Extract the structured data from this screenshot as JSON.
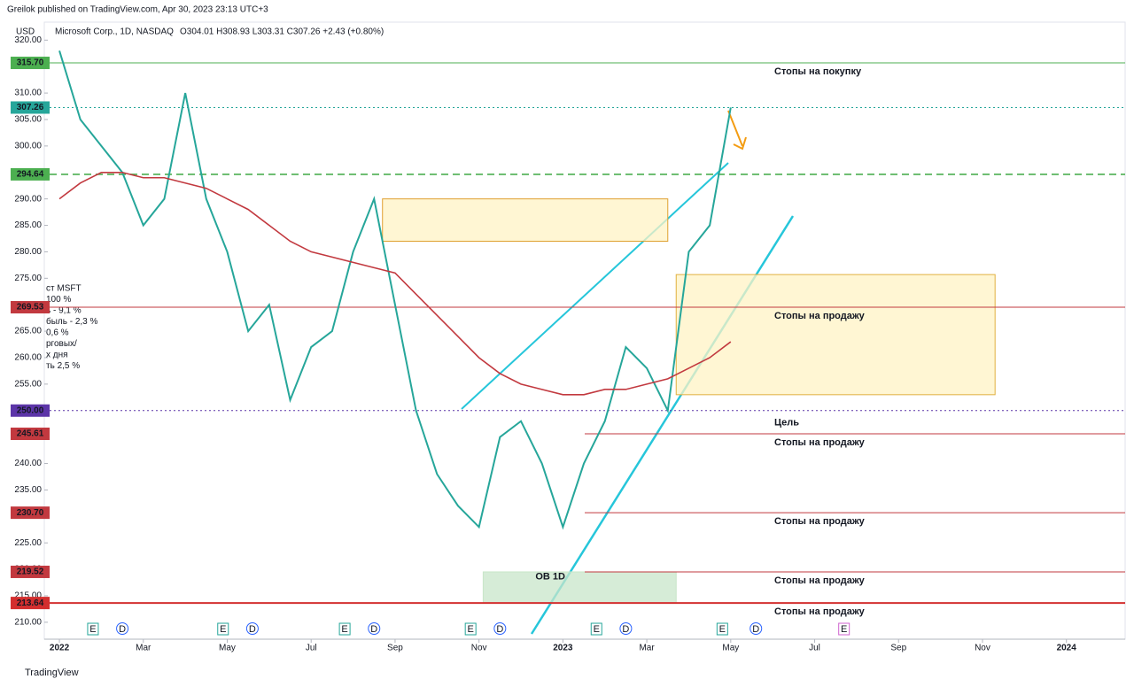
{
  "header": {
    "published": "Greilok published on TradingView.com, Apr 30, 2023 23:13 UTC+3",
    "currency": "USD",
    "symbol": "Microsoft Corp., 1D, NASDAQ",
    "ohlc": "O304.01 H308.93 L303.31 C307.26 +2.43 (+0.80%)",
    "notes": [
      "ст MSFT",
      "100 %",
      "ь - 9,1 %",
      "быль - 2,3 %",
      "0,6 %",
      "рговых/",
      "х дня",
      "ть 2,5 %"
    ]
  },
  "footer": {
    "brand": "TradingView"
  },
  "chart_data": {
    "type": "line",
    "xlim": [
      -0.36,
      25.4
    ],
    "ylim": [
      206.8,
      323.4
    ],
    "xticks": [
      {
        "value": 0,
        "label": "2022"
      },
      {
        "value": 2,
        "label": "Mar"
      },
      {
        "value": 4,
        "label": "May"
      },
      {
        "value": 6,
        "label": "Jul"
      },
      {
        "value": 8,
        "label": "Sep"
      },
      {
        "value": 10,
        "label": "Nov"
      },
      {
        "value": 12,
        "label": "2023"
      },
      {
        "value": 14,
        "label": "Mar"
      },
      {
        "value": 16,
        "label": "May"
      },
      {
        "value": 18,
        "label": "Jul"
      },
      {
        "value": 20,
        "label": "Sep"
      },
      {
        "value": 22,
        "label": "Nov"
      },
      {
        "value": 24,
        "label": "2024"
      }
    ],
    "yticks": [
      {
        "value": 210,
        "label": "210.00"
      },
      {
        "value": 215,
        "label": "215.00"
      },
      {
        "value": 220,
        "label": "220.00"
      },
      {
        "value": 225,
        "label": "225.00"
      },
      {
        "value": 230,
        "label": "230.00"
      },
      {
        "value": 235,
        "label": "235.00"
      },
      {
        "value": 240,
        "label": "240.00"
      },
      {
        "value": 255,
        "label": "255.00"
      },
      {
        "value": 260,
        "label": "260.00"
      },
      {
        "value": 265,
        "label": "265.00"
      },
      {
        "value": 275,
        "label": "275.00"
      },
      {
        "value": 280,
        "label": "280.00"
      },
      {
        "value": 285,
        "label": "285.00"
      },
      {
        "value": 290,
        "label": "290.00"
      },
      {
        "value": 300,
        "label": "300.00"
      },
      {
        "value": 305,
        "label": "305.00"
      },
      {
        "value": 310,
        "label": "310.00"
      },
      {
        "value": 320,
        "label": "320.00"
      }
    ],
    "x": [
      0,
      0.5,
      1,
      1.5,
      2,
      2.5,
      3,
      3.5,
      4,
      4.5,
      5,
      5.5,
      6,
      6.5,
      7,
      7.5,
      8,
      8.5,
      9,
      9.5,
      10,
      10.5,
      11,
      11.5,
      12,
      12.5,
      13,
      13.5,
      14,
      14.5,
      15,
      15.5,
      16
    ],
    "series": [
      {
        "name": "Microsoft Corp.",
        "color": "#26a69a",
        "values": [
          318,
          305,
          300,
          295,
          285,
          290,
          310,
          290,
          280,
          265,
          270,
          252,
          262,
          265,
          280,
          290,
          270,
          250,
          238,
          232,
          228,
          245,
          248,
          240,
          228,
          240,
          248,
          262,
          258,
          250,
          280,
          285,
          307.26
        ]
      },
      {
        "color": "#c2393f",
        "values": [
          290,
          293,
          295,
          295,
          294,
          294,
          293,
          292,
          290,
          288,
          285,
          282,
          280,
          279,
          278,
          277,
          276,
          272,
          268,
          264,
          260,
          257,
          255,
          254,
          253,
          253,
          254,
          254,
          255,
          256,
          258,
          260,
          263
        ]
      }
    ],
    "levels": [
      {
        "value": 315.7,
        "label": "315.70",
        "color": "#4caf50",
        "style": "solid",
        "text": "Стопы на покупку"
      },
      {
        "value": 307.26,
        "label": "307.26",
        "color": "#26a69a",
        "style": "dotted"
      },
      {
        "value": 294.64,
        "label": "294.64",
        "color": "#4caf50",
        "style": "dashed"
      },
      {
        "value": 269.53,
        "label": "269.53",
        "color": "#c2393f",
        "style": "solid",
        "text": "Стопы на продажу"
      },
      {
        "value": 250,
        "label": "250.00",
        "color": "#5c35a8",
        "style": "dotted",
        "text": "Цель"
      },
      {
        "value": 245.61,
        "label": "245.61",
        "color": "#c2393f",
        "style": "solid",
        "text": "Стопы на продажу"
      },
      {
        "value": 230.7,
        "label": "230.70",
        "color": "#c2393f",
        "style": "solid",
        "text": "Стопы на продажу"
      },
      {
        "value": 219.52,
        "label": "219.52",
        "color": "#c2393f",
        "style": "solid",
        "text": "Стопы на продажу"
      },
      {
        "value": 213.64,
        "label": "213.64",
        "color": "#d32f2f",
        "style": "thick",
        "text": "Стопы на продажу"
      }
    ],
    "zones": [
      {
        "x": [
          7.7,
          14.5
        ],
        "y": [
          282,
          290
        ],
        "color": "#fff3c4",
        "edge": "#e0a030"
      },
      {
        "x": [
          14.7,
          22.3
        ],
        "y": [
          253,
          275.7
        ],
        "color": "#fff3c4",
        "edge": "#e0b040"
      },
      {
        "x": [
          10.1,
          14.7
        ],
        "y": [
          213.64,
          219.52
        ],
        "color": "#c8e6c9",
        "edge": "#c8e6c9",
        "text": "OB 1D"
      }
    ],
    "events": [
      {
        "x": 0.8,
        "label": "E"
      },
      {
        "x": 1.5,
        "label": "D"
      },
      {
        "x": 3.9,
        "label": "E"
      },
      {
        "x": 4.6,
        "label": "D"
      },
      {
        "x": 6.8,
        "label": "E"
      },
      {
        "x": 7.5,
        "label": "D"
      },
      {
        "x": 9.8,
        "label": "E"
      },
      {
        "x": 10.5,
        "label": "D"
      },
      {
        "x": 12.8,
        "label": "E"
      },
      {
        "x": 13.5,
        "label": "D"
      },
      {
        "x": 15.8,
        "label": "E"
      },
      {
        "x": 16.6,
        "label": "D"
      },
      {
        "x": 18.7,
        "label": "E"
      }
    ]
  }
}
